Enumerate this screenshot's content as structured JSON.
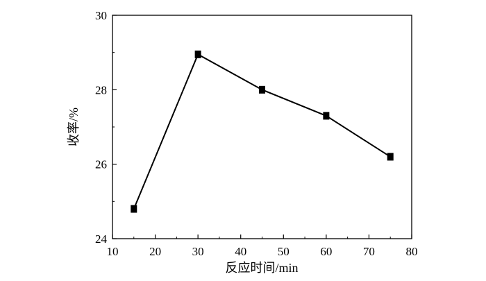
{
  "chart_data": {
    "type": "line",
    "xlabel": "反应时间/min",
    "ylabel": "收率/%",
    "xlim": [
      10,
      80
    ],
    "ylim": [
      24,
      30
    ],
    "xticks": [
      10,
      20,
      30,
      40,
      50,
      60,
      70,
      80
    ],
    "yticks": [
      24,
      26,
      28,
      30
    ],
    "grid": false,
    "series": [
      {
        "x": [
          15,
          30,
          45,
          60,
          75
        ],
        "values": [
          24.8,
          28.95,
          28.0,
          27.3,
          26.2
        ],
        "marker": "square",
        "color": "#000000"
      }
    ]
  }
}
